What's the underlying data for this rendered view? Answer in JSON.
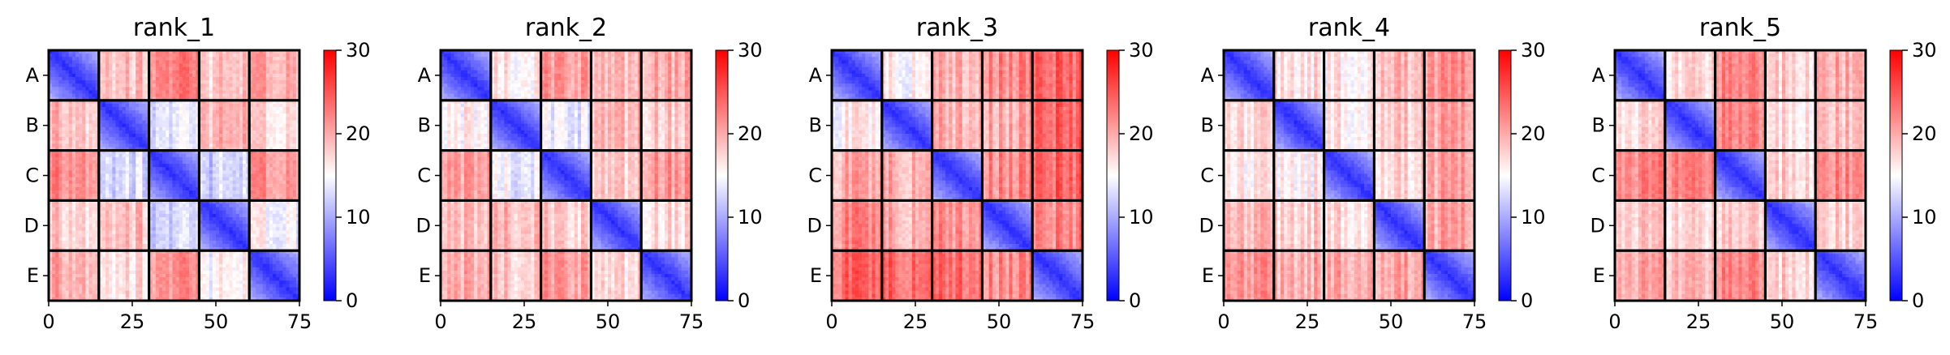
{
  "chart_data": {
    "type": "heatmap",
    "colormap": "bwr",
    "colormap_colors": {
      "low": "#0000ff",
      "mid": "#ffffff",
      "high": "#ff0000"
    },
    "value_range": [
      0,
      30
    ],
    "colorbar_ticks": [
      "0",
      "10",
      "20",
      "30"
    ],
    "x_ticks": [
      "0",
      "25",
      "50",
      "75"
    ],
    "x_range": [
      0,
      75
    ],
    "groups": [
      "A",
      "B",
      "C",
      "D",
      "E"
    ],
    "group_size": 15,
    "block_border_color": "#000000",
    "panels": [
      {
        "title": "rank_1",
        "diagonal_value": 2.0,
        "offdiag_block_means": [
          [
            2,
            19,
            22,
            18,
            20
          ],
          [
            19,
            2,
            13,
            19,
            17
          ],
          [
            22,
            13,
            2,
            12,
            21
          ],
          [
            18,
            19,
            12,
            2,
            15
          ],
          [
            20,
            17,
            21,
            15,
            2
          ]
        ]
      },
      {
        "title": "rank_2",
        "diagonal_value": 2.0,
        "offdiag_block_means": [
          [
            2,
            16,
            21,
            19,
            20
          ],
          [
            16,
            2,
            14,
            19,
            18
          ],
          [
            21,
            14,
            2,
            18,
            21
          ],
          [
            19,
            19,
            18,
            2,
            17
          ],
          [
            20,
            18,
            21,
            17,
            2
          ]
        ]
      },
      {
        "title": "rank_3",
        "diagonal_value": 2.0,
        "offdiag_block_means": [
          [
            2,
            16,
            20,
            22,
            24
          ],
          [
            16,
            2,
            20,
            20,
            24
          ],
          [
            20,
            20,
            2,
            22,
            24
          ],
          [
            22,
            20,
            22,
            2,
            22
          ],
          [
            24,
            24,
            24,
            22,
            2
          ]
        ]
      },
      {
        "title": "rank_4",
        "diagonal_value": 2.0,
        "offdiag_block_means": [
          [
            2,
            17,
            16,
            19,
            21
          ],
          [
            17,
            2,
            16,
            18,
            20
          ],
          [
            16,
            16,
            2,
            17,
            20
          ],
          [
            19,
            18,
            17,
            2,
            20
          ],
          [
            21,
            20,
            20,
            20,
            2
          ]
        ]
      },
      {
        "title": "rank_5",
        "diagonal_value": 2.0,
        "offdiag_block_means": [
          [
            2,
            17,
            22,
            18,
            20
          ],
          [
            17,
            2,
            22,
            17,
            19
          ],
          [
            22,
            22,
            2,
            18,
            22
          ],
          [
            18,
            17,
            18,
            2,
            18
          ],
          [
            20,
            19,
            22,
            18,
            2
          ]
        ]
      }
    ]
  }
}
